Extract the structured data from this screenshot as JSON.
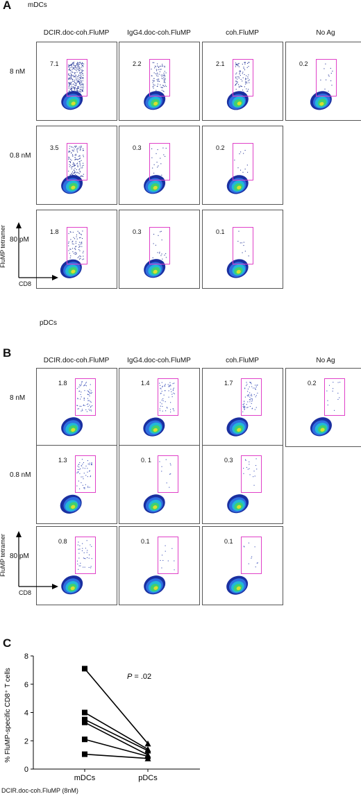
{
  "panel_a": {
    "letter": "A",
    "subtitle": "mDCs",
    "columns": [
      "DCIR.doc-coh.FluMP",
      "IgG4.doc-coh.FluMP",
      "coh.FluMP",
      "No Ag"
    ],
    "rows": [
      "8 nM",
      "0.8 nM",
      "80 pM"
    ],
    "percentages": [
      [
        "7.1",
        "2.2",
        "2.1",
        "0.2"
      ],
      [
        "3.5",
        "0.3",
        "0.2",
        null
      ],
      [
        "1.8",
        "0.3",
        "0.1",
        null
      ]
    ],
    "y_axis": "FluMP tetramer",
    "x_axis": "CD8"
  },
  "panel_b": {
    "letter": "B",
    "subtitle": "pDCs",
    "columns": [
      "DCIR.doc-coh.FluMP",
      "IgG4.doc-coh.FluMP",
      "coh.FluMP",
      "No Ag"
    ],
    "rows": [
      "8 nM",
      "0.8 nM",
      "80 pM"
    ],
    "percentages": [
      [
        "1.8",
        "1.4",
        "1.7",
        "0.2"
      ],
      [
        "1.3",
        "0. 1",
        "0.3",
        null
      ],
      [
        "0.8",
        "0.1",
        "0.1",
        null
      ]
    ],
    "y_axis": "FluMP tetramer",
    "x_axis": "CD8"
  },
  "chart_data": {
    "type": "scatter",
    "panel_letter": "C",
    "categories": [
      "mDCs",
      "pDCs"
    ],
    "ylabel": "% FluMP-specific CD8⁺ T cells",
    "ylim": [
      0,
      8
    ],
    "yticks": [
      "0",
      "2",
      "4",
      "6",
      "8"
    ],
    "annotation_p": "P",
    "annotation_value": "= .02",
    "footnote": "DCIR.doc-coh.FluMP (8nM)",
    "pairs": [
      {
        "mDCs": 7.1,
        "pDCs": 1.8
      },
      {
        "mDCs": 4.0,
        "pDCs": 1.4
      },
      {
        "mDCs": 3.5,
        "pDCs": 1.3
      },
      {
        "mDCs": 3.3,
        "pDCs": 1.0
      },
      {
        "mDCs": 2.1,
        "pDCs": 0.9
      },
      {
        "mDCs": 1.05,
        "pDCs": 0.75
      }
    ],
    "marker_mDCs": "square",
    "marker_pDCs": "triangle",
    "color": "#000000"
  },
  "colors": {
    "gate": "#e040c8",
    "mdc_density": [
      "#1a2fa0",
      "#2f6fe0",
      "#22b8d8",
      "#40d070",
      "#d8e030"
    ],
    "pdc_density": [
      "#1a2fa0",
      "#2f6fe0",
      "#22b8d8",
      "#40d070",
      "#d8e030"
    ]
  }
}
